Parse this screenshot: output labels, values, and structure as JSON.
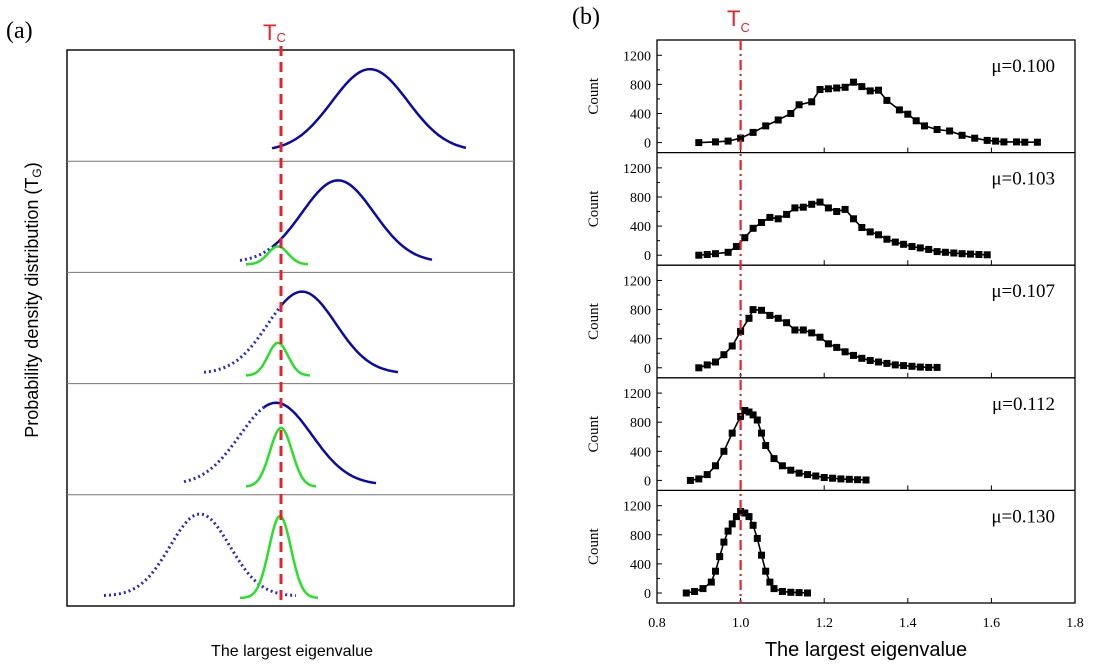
{
  "panel_a": {
    "label": "(a)",
    "tc_label": "T",
    "tc_sub": "C",
    "ylabel": "Probability density distribution (T",
    "ylabel_sub": "G",
    "ylabel_end": ")",
    "xlabel": "The largest eigenvalue",
    "colors": {
      "blue": "#0a0aaa",
      "green": "#2adf2a",
      "tc": "#e8222a",
      "dotted": "#2a2ad0"
    }
  },
  "panel_b": {
    "label": "(b)",
    "tc_label": "T",
    "tc_sub": "C",
    "xlabel": "The largest eigenvalue",
    "ylabel": "Count"
  },
  "chart_data": [
    {
      "type": "line",
      "panel": "a",
      "title": "",
      "xlabel": "The largest eigenvalue",
      "ylabel": "Probability density distribution (TG)",
      "axis_ticks": "none",
      "rows": 5,
      "series": [
        {
          "row": 1,
          "solid_peak_x": 370,
          "solid_width": 38,
          "solid_range": [
            272,
            466
          ],
          "dotted_range": [],
          "green": null
        },
        {
          "row": 2,
          "solid_peak_x": 338,
          "solid_width": 36,
          "solid_range": [
            272,
            432
          ],
          "dotted_range": [
            240,
            272
          ],
          "green": {
            "peak_x": 278,
            "width": 10,
            "range": [
              246,
              308
            ],
            "height": 0.22
          }
        },
        {
          "row": 3,
          "solid_peak_x": 302,
          "solid_width": 34,
          "solid_range": [
            280,
            398
          ],
          "dotted_range": [
            204,
            280
          ],
          "green": {
            "peak_x": 278,
            "width": 10,
            "range": [
              246,
              310
            ],
            "height": 0.4
          }
        },
        {
          "row": 4,
          "solid_peak_x": 276,
          "solid_width": 36,
          "solid_range": [
            264,
            376
          ],
          "dotted_range": [
            184,
            264
          ],
          "green": {
            "peak_x": 281,
            "width": 11,
            "range": [
              246,
              316
            ],
            "height": 0.72
          }
        },
        {
          "row": 5,
          "solid_peak_x": 200,
          "solid_width": 30,
          "solid_range": [],
          "dotted_range": [
            104,
            296
          ],
          "green": {
            "peak_x": 280,
            "width": 11,
            "range": [
              240,
              318
            ],
            "height": 1.0
          }
        }
      ]
    },
    {
      "type": "line",
      "panel": "b",
      "title": "",
      "xlabel": "The largest eigenvalue",
      "ylabel": "Count",
      "xlim": [
        0.8,
        1.8
      ],
      "xticks": [
        0.8,
        1.0,
        1.2,
        1.4,
        1.6,
        1.8
      ],
      "xtick_labels": [
        "0.8",
        "1.0",
        "1.2",
        "1.4",
        "1.6",
        "1.8"
      ],
      "ylim": [
        0,
        1300
      ],
      "yticks": [
        0,
        400,
        800,
        1200
      ],
      "ytick_labels": [
        "0",
        "400",
        "800",
        "1200"
      ],
      "tc_x": 1.0,
      "series": [
        {
          "name": "μ=0.100",
          "x": [
            0.9,
            0.94,
            0.97,
            1.0,
            1.03,
            1.06,
            1.09,
            1.12,
            1.14,
            1.17,
            1.19,
            1.21,
            1.23,
            1.25,
            1.27,
            1.29,
            1.31,
            1.33,
            1.35,
            1.38,
            1.4,
            1.42,
            1.44,
            1.47,
            1.5,
            1.53,
            1.56,
            1.59,
            1.61,
            1.63,
            1.66,
            1.68,
            1.71
          ],
          "values": [
            0,
            10,
            20,
            60,
            140,
            230,
            310,
            400,
            520,
            560,
            730,
            740,
            750,
            760,
            830,
            770,
            710,
            720,
            580,
            450,
            390,
            300,
            230,
            180,
            160,
            100,
            60,
            30,
            20,
            10,
            10,
            5,
            5
          ]
        },
        {
          "name": "μ=0.103",
          "x": [
            0.9,
            0.92,
            0.94,
            0.97,
            0.99,
            1.01,
            1.03,
            1.05,
            1.07,
            1.09,
            1.11,
            1.13,
            1.15,
            1.17,
            1.19,
            1.21,
            1.23,
            1.25,
            1.27,
            1.29,
            1.31,
            1.33,
            1.35,
            1.37,
            1.39,
            1.41,
            1.43,
            1.45,
            1.47,
            1.49,
            1.51,
            1.53,
            1.55,
            1.57,
            1.59
          ],
          "values": [
            0,
            10,
            20,
            40,
            120,
            240,
            370,
            450,
            520,
            500,
            560,
            650,
            660,
            700,
            730,
            650,
            600,
            630,
            500,
            380,
            320,
            280,
            220,
            180,
            150,
            120,
            100,
            80,
            50,
            40,
            30,
            20,
            15,
            10,
            5
          ]
        },
        {
          "name": "μ=0.107",
          "x": [
            0.9,
            0.92,
            0.94,
            0.96,
            0.98,
            1.0,
            1.02,
            1.03,
            1.05,
            1.07,
            1.09,
            1.11,
            1.13,
            1.15,
            1.17,
            1.19,
            1.21,
            1.23,
            1.25,
            1.27,
            1.29,
            1.31,
            1.33,
            1.35,
            1.37,
            1.39,
            1.41,
            1.43,
            1.45,
            1.47
          ],
          "values": [
            0,
            40,
            80,
            180,
            300,
            500,
            680,
            800,
            790,
            720,
            680,
            620,
            520,
            520,
            480,
            420,
            330,
            280,
            220,
            170,
            130,
            100,
            80,
            60,
            40,
            30,
            20,
            10,
            5,
            5
          ]
        },
        {
          "name": "μ=0.112",
          "x": [
            0.88,
            0.9,
            0.92,
            0.94,
            0.96,
            0.98,
            1.0,
            1.01,
            1.02,
            1.03,
            1.04,
            1.05,
            1.06,
            1.08,
            1.1,
            1.12,
            1.14,
            1.16,
            1.18,
            1.2,
            1.22,
            1.24,
            1.26,
            1.28,
            1.3
          ],
          "values": [
            0,
            20,
            80,
            200,
            400,
            650,
            880,
            960,
            940,
            900,
            830,
            650,
            480,
            300,
            200,
            140,
            100,
            80,
            60,
            40,
            30,
            20,
            15,
            10,
            5
          ]
        },
        {
          "name": "μ=0.130",
          "x": [
            0.87,
            0.89,
            0.91,
            0.93,
            0.94,
            0.95,
            0.96,
            0.97,
            0.98,
            0.99,
            1.0,
            1.01,
            1.02,
            1.03,
            1.04,
            1.05,
            1.06,
            1.07,
            1.08,
            1.1,
            1.12,
            1.14,
            1.16
          ],
          "values": [
            0,
            20,
            60,
            150,
            300,
            500,
            700,
            850,
            950,
            1050,
            1120,
            1100,
            1050,
            930,
            750,
            520,
            300,
            150,
            60,
            20,
            10,
            5,
            0
          ]
        }
      ]
    }
  ]
}
